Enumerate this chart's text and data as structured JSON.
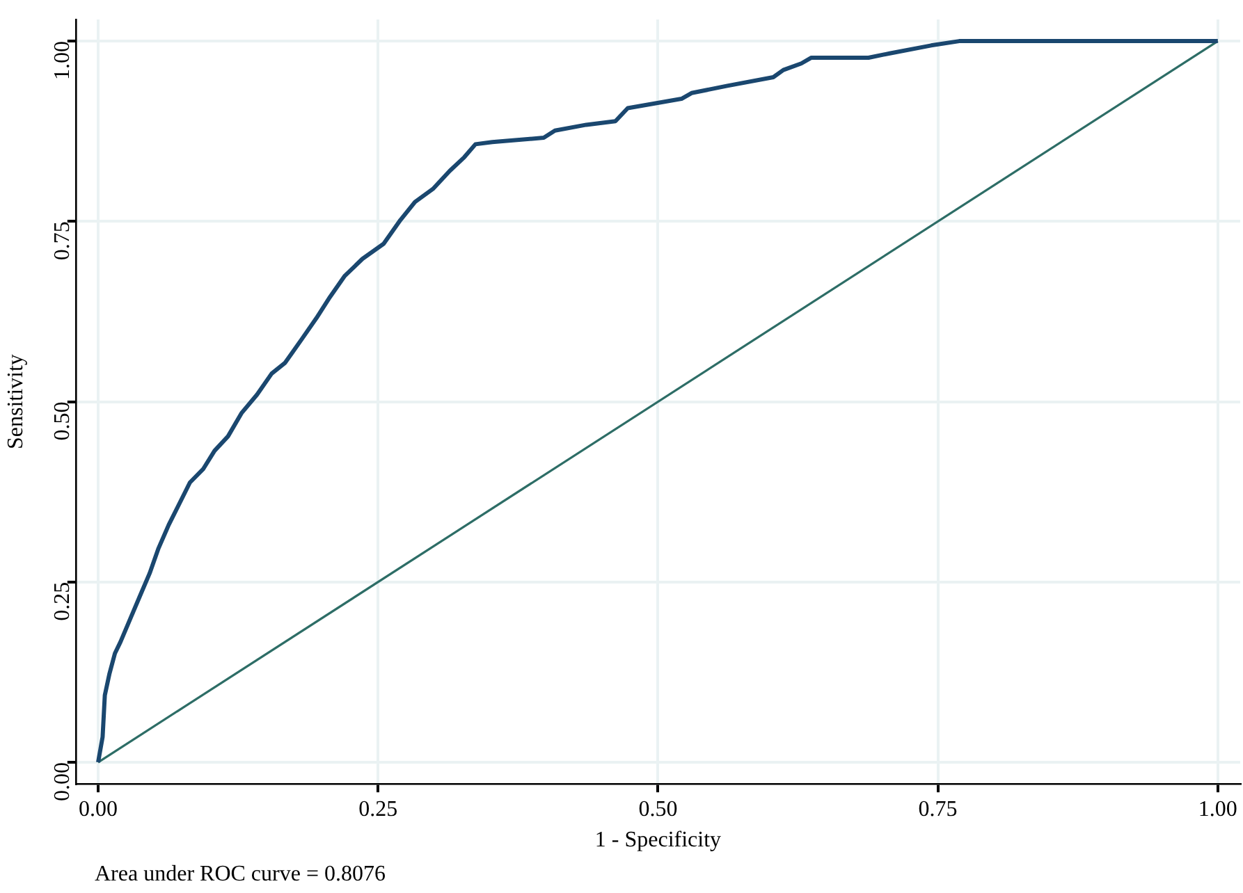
{
  "chart_data": {
    "type": "line",
    "xlabel": "1 - Specificity",
    "ylabel": "Sensitivity",
    "annotations": [
      "Area under ROC curve = 0.8076"
    ],
    "xlim": [
      -0.02,
      1.02
    ],
    "ylim": [
      -0.03,
      1.03
    ],
    "xticks": [
      {
        "value": 0,
        "label": "0.00"
      },
      {
        "value": 0.25,
        "label": "0.25"
      },
      {
        "value": 0.5,
        "label": "0.50"
      },
      {
        "value": 0.75,
        "label": "0.75"
      },
      {
        "value": 1,
        "label": "1.00"
      }
    ],
    "yticks": [
      {
        "value": 0,
        "label": "0.00"
      },
      {
        "value": 0.25,
        "label": "0.25"
      },
      {
        "value": 0.5,
        "label": "0.50"
      },
      {
        "value": 0.75,
        "label": "0.75"
      },
      {
        "value": 1,
        "label": "1.00"
      }
    ],
    "grid": true,
    "marker": "none",
    "line_style": "solid",
    "legend": false,
    "series": [
      {
        "color": "#1a476f",
        "x": [
          0,
          0.004,
          0.006,
          0.01,
          0.015,
          0.02,
          0.029,
          0.038,
          0.046,
          0.054,
          0.063,
          0.073,
          0.082,
          0.094,
          0.104,
          0.116,
          0.128,
          0.142,
          0.155,
          0.167,
          0.182,
          0.195,
          0.207,
          0.22,
          0.236,
          0.255,
          0.27,
          0.283,
          0.299,
          0.314,
          0.327,
          0.337,
          0.352,
          0.398,
          0.408,
          0.436,
          0.462,
          0.473,
          0.521,
          0.53,
          0.562,
          0.603,
          0.612,
          0.628,
          0.637,
          0.688,
          0.707,
          0.744,
          0.769,
          1
        ],
        "values": [
          0,
          0.035,
          0.093,
          0.122,
          0.151,
          0.167,
          0.2,
          0.233,
          0.262,
          0.297,
          0.329,
          0.36,
          0.388,
          0.407,
          0.432,
          0.452,
          0.484,
          0.51,
          0.539,
          0.554,
          0.587,
          0.616,
          0.645,
          0.674,
          0.698,
          0.719,
          0.752,
          0.777,
          0.795,
          0.82,
          0.839,
          0.857,
          0.86,
          0.866,
          0.876,
          0.884,
          0.889,
          0.907,
          0.92,
          0.928,
          0.938,
          0.95,
          0.96,
          0.969,
          0.977,
          0.977,
          0.983,
          0.994,
          1,
          1
        ]
      },
      {
        "color": "#2d6d66",
        "x": [
          0,
          1
        ],
        "values": [
          0,
          1
        ]
      }
    ]
  }
}
